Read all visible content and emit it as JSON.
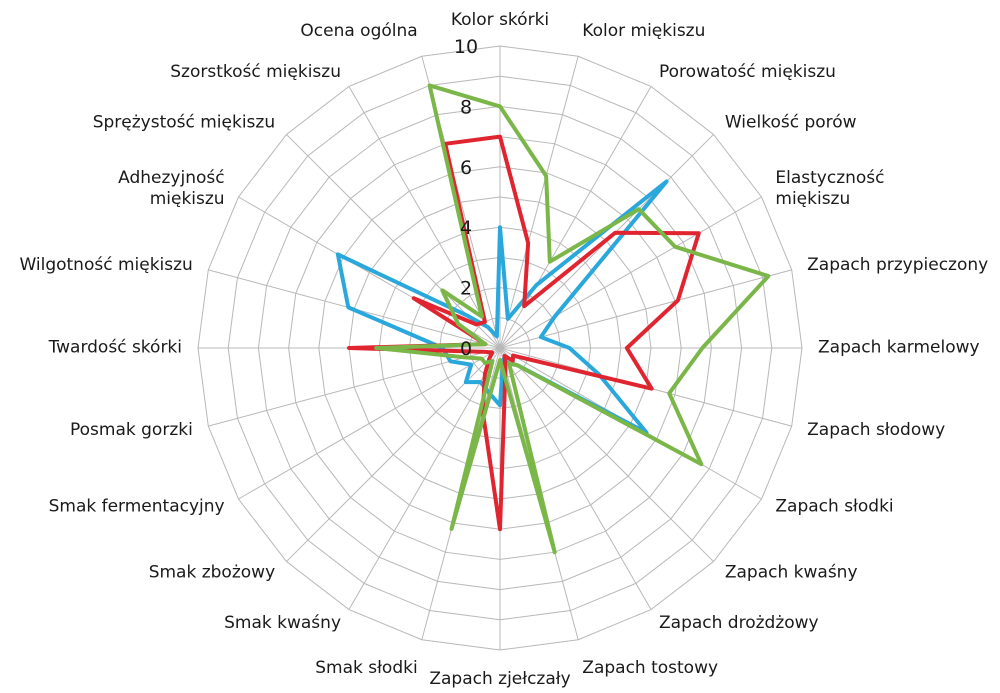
{
  "chart_data": {
    "type": "radar",
    "axes": [
      "Kolor skórki",
      "Kolor miękiszu",
      "Porowatość miękiszu",
      "Wielkość porów",
      "Elastyczność miękiszu",
      "Zapach przypieczony",
      "Zapach karmelowy",
      "Zapach słodowy",
      "Zapach słodki",
      "Zapach kwaśny",
      "Zapach drożdżowy",
      "Zapach tostowy",
      "Zapach zjełczały",
      "Smak słodki",
      "Smak kwaśny",
      "Smak zbożowy",
      "Smak fermentacyjny",
      "Posmak gorzki",
      "Twardość skórki",
      "Wilgotność miękiszu",
      "Adhezyjność miękiszu",
      "Sprężystość miękiszu",
      "Szorstkość miękiszu",
      "Ocena ogólna"
    ],
    "axis_label_lines": [
      [
        "Kolor skórki"
      ],
      [
        "Kolor miękiszu"
      ],
      [
        "Porowatość miękiszu"
      ],
      [
        "Wielkość porów"
      ],
      [
        "Elastyczność",
        "miękiszu"
      ],
      [
        "Zapach przypieczony"
      ],
      [
        "Zapach karmelowy"
      ],
      [
        "Zapach słodowy"
      ],
      [
        "Zapach słodki"
      ],
      [
        "Zapach kwaśny"
      ],
      [
        "Zapach drożdżowy"
      ],
      [
        "Zapach tostowy"
      ],
      [
        "Zapach zjełczały"
      ],
      [
        "Smak słodki"
      ],
      [
        "Smak kwaśny"
      ],
      [
        "Smak zbożowy"
      ],
      [
        "Smak fermentacyjny"
      ],
      [
        "Posmak gorzki"
      ],
      [
        "Twardość skórki"
      ],
      [
        "Wilgotność miękiszu"
      ],
      [
        "Adhezyjność",
        "miękiszu"
      ],
      [
        "Sprężystość miękiszu"
      ],
      [
        "Szorstkość miękiszu"
      ],
      [
        "Ocena ogólna"
      ]
    ],
    "rlim": [
      0,
      10
    ],
    "ticks": [
      "0",
      "2",
      "4",
      "6",
      "8",
      "10"
    ],
    "grid": true,
    "series": [
      {
        "color": "#2aa8dc",
        "values": [
          4.0,
          1.0,
          2.4,
          7.8,
          2.1,
          1.4,
          2.3,
          3.4,
          5.6,
          0.8,
          0.6,
          0.4,
          1.9,
          1.5,
          1.3,
          1.6,
          1.1,
          1.7,
          1.9,
          5.2,
          6.2,
          1.5,
          0.8,
          0.4
        ]
      },
      {
        "color": "#e02530",
        "values": [
          7.0,
          3.6,
          1.6,
          5.4,
          7.6,
          6.1,
          4.2,
          5.2,
          0.5,
          0.6,
          0.3,
          0.7,
          6.0,
          2.2,
          1.0,
          0.5,
          0.3,
          0.5,
          5.0,
          0.5,
          3.3,
          1.1,
          1.0,
          7.0
        ]
      },
      {
        "color": "#7ab648",
        "values": [
          8.0,
          5.9,
          3.3,
          6.5,
          6.7,
          9.2,
          6.7,
          5.8,
          7.7,
          0.8,
          0.6,
          7.0,
          0.4,
          6.2,
          0.5,
          0.7,
          0.7,
          1.2,
          4.1,
          0.5,
          1.6,
          2.7,
          1.2,
          9.0
        ]
      }
    ]
  }
}
